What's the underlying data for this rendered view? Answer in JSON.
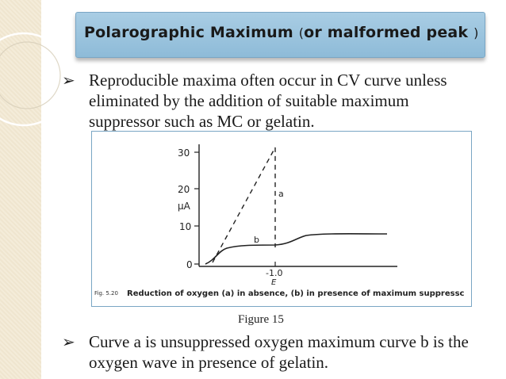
{
  "title": {
    "main": "Polarographic Maximum",
    "paren_open": "(",
    "sub": "or malformed peak",
    "paren_close": ")"
  },
  "bullets": [
    {
      "lines": [
        "Reproducible maxima often occur in CV curve unless",
        "eliminated by the addition of suitable maximum",
        "suppressor such as MC or gelatin."
      ]
    },
    {
      "lines": [
        "Curve a is unsuppressed oxygen maximum curve b is the",
        "oxygen wave in presence of gelatin."
      ]
    }
  ],
  "figure": {
    "y_ticks": [
      "30",
      "20",
      "10",
      "0"
    ],
    "y_unit": "μA",
    "x_tick": "-1.0",
    "x_label": "E",
    "curve_a_label": "a",
    "curve_b_label": "b",
    "fig_number": "Fig. 5.20",
    "fig_caption": "Reduction of oxygen (a) in absence, (b) in presence of maximum suppressc"
  },
  "caption": "Figure 15",
  "colors": {
    "title_bg": "#a9cde4",
    "frame": "#7aa6c4"
  }
}
